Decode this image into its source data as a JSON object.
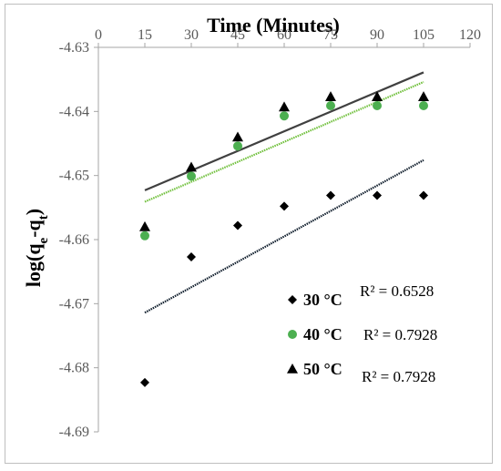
{
  "chart_data": {
    "type": "scatter",
    "title": "Time (Minutes)",
    "xlabel": "Time (Minutes)",
    "ylabel_parts": {
      "base": "log(q",
      "sub1": "e",
      "mid": "-q",
      "sub2": "t",
      "end": ")"
    },
    "xlim": [
      0,
      120
    ],
    "ylim": [
      -4.69,
      -4.63
    ],
    "xticks": [
      0,
      15,
      30,
      45,
      60,
      75,
      90,
      105,
      120
    ],
    "xtick_labels": [
      "0",
      "15",
      "30",
      "45",
      "60",
      "75",
      "90",
      "105",
      "120"
    ],
    "yticks": [
      -4.63,
      -4.64,
      -4.65,
      -4.66,
      -4.67,
      -4.68,
      -4.69
    ],
    "ytick_labels": [
      "-4.63",
      "-4.64",
      "-4.65",
      "-4.66",
      "-4.67",
      "-4.68",
      "-4.69"
    ],
    "x_axis_position": "top",
    "grid": false,
    "series": [
      {
        "name": "30 °C",
        "marker": "diamond",
        "color": "#000000",
        "x": [
          15,
          30,
          45,
          60,
          75,
          90,
          105
        ],
        "y": [
          -4.6823,
          -4.6627,
          -4.6578,
          -4.6548,
          -4.6531,
          -4.6531,
          -4.6531
        ],
        "trendline": {
          "color": "#0d1b2a",
          "x": [
            15,
            105
          ],
          "y": [
            -4.6714,
            -4.6476
          ]
        },
        "r2_text": "R² = 0.6528"
      },
      {
        "name": "40 °C",
        "marker": "circle",
        "color": "#4caf50",
        "x": [
          15,
          30,
          45,
          60,
          75,
          90,
          105
        ],
        "y": [
          -4.6594,
          -4.6501,
          -4.6454,
          -4.6407,
          -4.6391,
          -4.6391,
          -4.6391
        ],
        "trendline": {
          "color": "#6fbf3a",
          "x": [
            15,
            105
          ],
          "y": [
            -4.6541,
            -4.6354
          ]
        },
        "r2_text": "R² = 0.7928"
      },
      {
        "name": "50 °C",
        "marker": "triangle",
        "color": "#000000",
        "x": [
          15,
          30,
          45,
          60,
          75,
          90,
          105
        ],
        "y": [
          -4.658,
          -4.6487,
          -4.644,
          -4.6393,
          -4.6377,
          -4.6377,
          -4.6377
        ],
        "trendline": {
          "color": "#404040",
          "x": [
            15,
            105
          ],
          "y": [
            -4.6523,
            -4.6339
          ]
        },
        "r2_text": "R² = 0.7928"
      }
    ],
    "legend_position": "bottom-right"
  }
}
